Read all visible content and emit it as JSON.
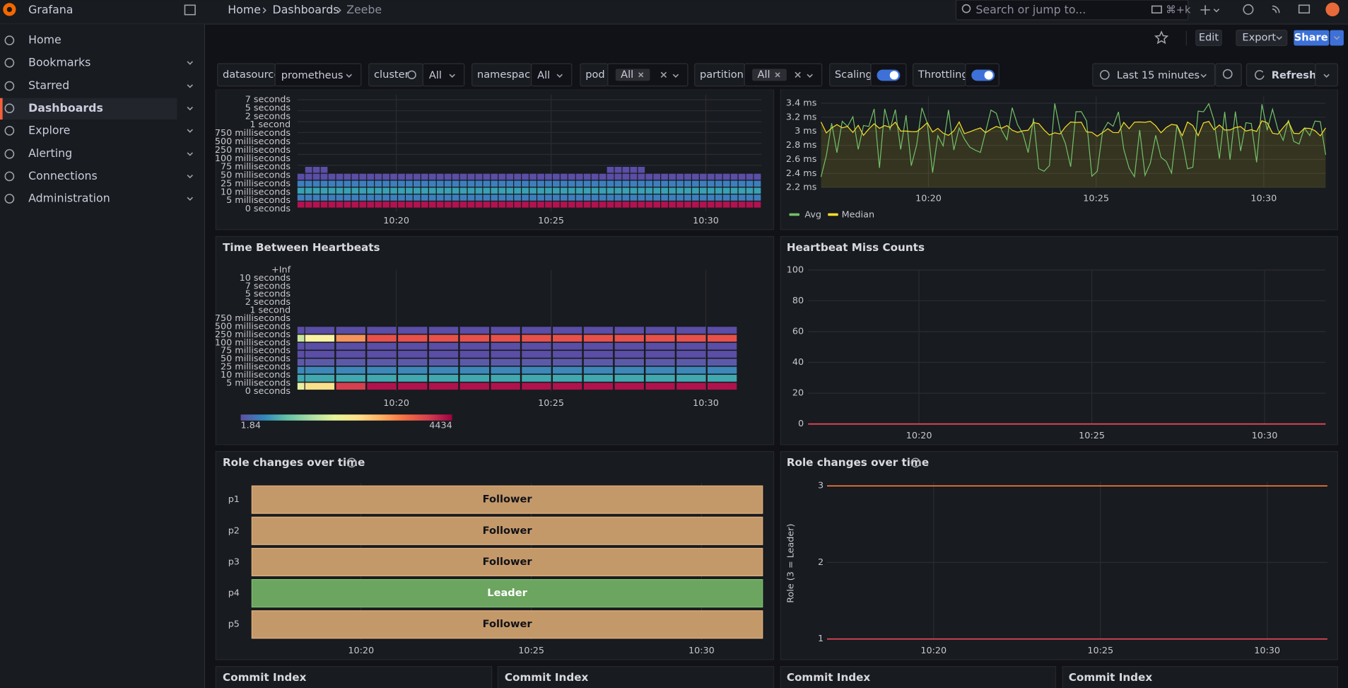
{
  "header": {
    "app": "Grafana",
    "breadcrumbs": [
      "Home",
      "Dashboards",
      "Zeebe"
    ],
    "search": "Search or jump to...",
    "shortcut": "⌘+k"
  },
  "nav": [
    "Home",
    "Bookmarks",
    "Starred",
    "Dashboards",
    "Explore",
    "Alerting",
    "Connections",
    "Administration"
  ],
  "toolbar": {
    "edit": "Edit",
    "export": "Export",
    "share": "Share"
  },
  "variables": [
    {
      "label": "datasource",
      "value": "prometheus"
    },
    {
      "label": "cluster",
      "value": "All"
    },
    {
      "label": "namespace",
      "value": "All"
    },
    {
      "label": "pod",
      "value": "All"
    },
    {
      "label": "partition",
      "value": "All"
    }
  ],
  "toggles": [
    "Scaling",
    "Throttling"
  ],
  "time_range": "Last 15 minutes",
  "refresh": "Refresh",
  "panels": [
    {
      "type": "heatmap",
      "y_labels": [
        "7 seconds",
        "5 seconds",
        "2 seconds",
        "1 second",
        "750 milliseconds",
        "500 milliseconds",
        "250 milliseconds",
        "100 milliseconds",
        "75 milliseconds",
        "50 milliseconds",
        "25 milliseconds",
        "10 milliseconds",
        "5 milliseconds",
        "0 seconds"
      ],
      "x_labels": [
        "10:20",
        "10:25",
        "10:30"
      ]
    },
    {
      "type": "line",
      "yticks": [
        "3.4 ms",
        "3.2 ms",
        "3 ms",
        "2.8 ms",
        "2.6 ms",
        "2.4 ms",
        "2.2 ms"
      ],
      "x_labels": [
        "10:20",
        "10:25",
        "10:30"
      ],
      "legend": [
        {
          "name": "Avg",
          "color": "#73bf69"
        },
        {
          "name": "Median",
          "color": "#fade2a"
        }
      ]
    },
    {
      "type": "heatmap",
      "title": "Time Between Heartbeats",
      "y_labels": [
        "+Inf",
        "10 seconds",
        "7 seconds",
        "5 seconds",
        "2 seconds",
        "1 second",
        "750 milliseconds",
        "500 milliseconds",
        "250 milliseconds",
        "100 milliseconds",
        "75 milliseconds",
        "50 milliseconds",
        "25 milliseconds",
        "10 milliseconds",
        "5 milliseconds",
        "0 seconds"
      ],
      "x_labels": [
        "10:20",
        "10:25",
        "10:30"
      ],
      "scale": {
        "min": "1.84",
        "max": "4434"
      }
    },
    {
      "type": "line",
      "title": "Heartbeat Miss Counts",
      "yticks": [
        100,
        80,
        60,
        40,
        20,
        0
      ],
      "x_labels": [
        "10:20",
        "10:25",
        "10:30"
      ]
    },
    {
      "type": "state-timeline",
      "title": "Role changes over time",
      "rows": [
        {
          "name": "p1",
          "state": "Follower"
        },
        {
          "name": "p2",
          "state": "Follower"
        },
        {
          "name": "p3",
          "state": "Follower"
        },
        {
          "name": "p4",
          "state": "Leader"
        },
        {
          "name": "p5",
          "state": "Follower"
        }
      ],
      "x_labels": [
        "10:20",
        "10:25",
        "10:30"
      ]
    },
    {
      "type": "line",
      "title": "Role changes over time",
      "ylabel": "Role (3 = Leader)",
      "yticks": [
        3,
        2,
        1
      ],
      "x_labels": [
        "10:20",
        "10:25",
        "10:30"
      ]
    },
    {
      "type": "panel",
      "title": "Commit Index"
    },
    {
      "type": "panel",
      "title": "Commit Index"
    },
    {
      "type": "panel",
      "title": "Commit Index"
    },
    {
      "type": "panel",
      "title": "Commit Index"
    }
  ]
}
